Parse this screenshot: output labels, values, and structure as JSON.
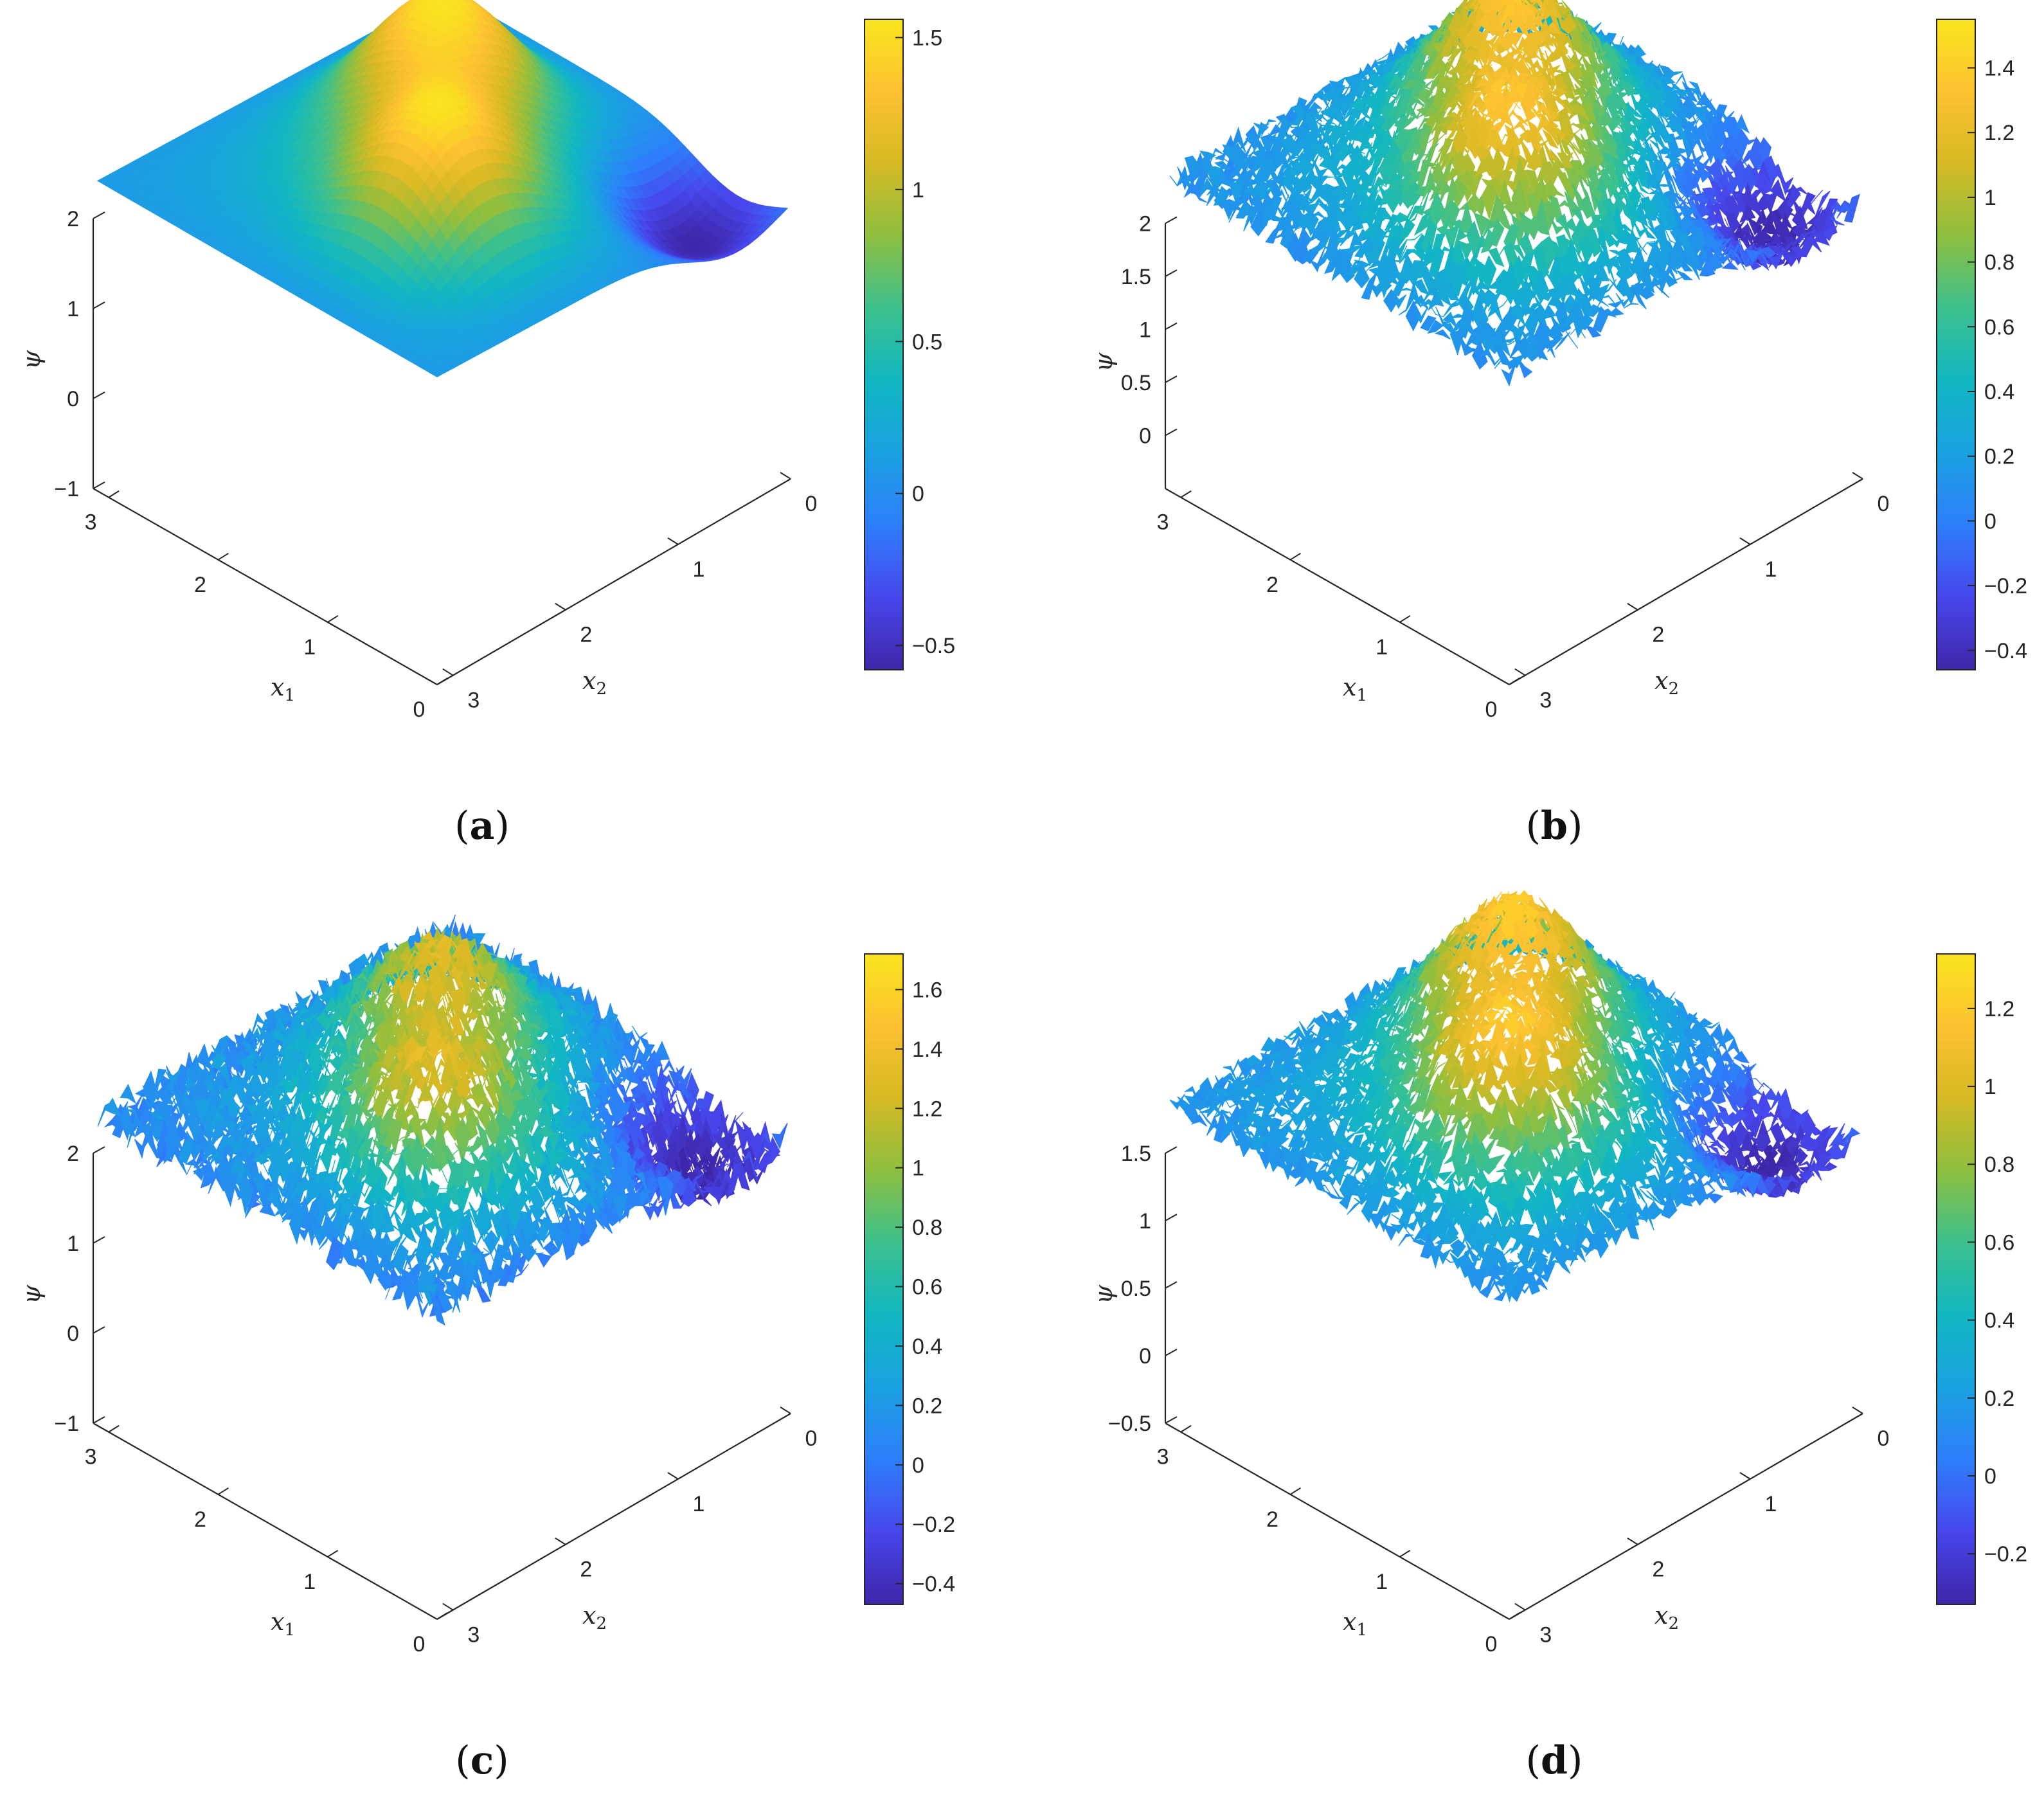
{
  "chart_data": [
    {
      "panel": "(a)",
      "letter": "a",
      "type": "surface",
      "xlabel": "x1",
      "ylabel": "x2",
      "zlabel": "ψ",
      "xlim": [
        0,
        3.14159
      ],
      "ylim": [
        0,
        3.14159
      ],
      "x_ticks": [
        "0",
        "1",
        "2",
        "3"
      ],
      "y_ticks": [
        "0",
        "1",
        "2",
        "3"
      ],
      "z_ticks": [
        "−1",
        "0",
        "1",
        "2"
      ],
      "z_tick_values": [
        -1,
        0,
        1,
        2
      ],
      "zlim": [
        -1,
        2
      ],
      "colorbar_ticks": [
        "−0.5",
        "0",
        "0.5",
        "1",
        "1.5"
      ],
      "colorbar_tick_values": [
        -0.5,
        0,
        0.5,
        1,
        1.5
      ],
      "colorbar_range": [
        -0.58,
        1.56
      ],
      "surface": {
        "peak_value": 1.56,
        "min_value": -0.58,
        "noise": 0.0
      }
    },
    {
      "panel": "(b)",
      "letter": "b",
      "type": "surface",
      "xlabel": "x1",
      "ylabel": "x2",
      "zlabel": "ψ",
      "xlim": [
        0,
        3.14159
      ],
      "ylim": [
        0,
        3.14159
      ],
      "x_ticks": [
        "0",
        "1",
        "2",
        "3"
      ],
      "y_ticks": [
        "0",
        "1",
        "2",
        "3"
      ],
      "z_ticks": [
        "0",
        "0.5",
        "1",
        "1.5",
        "2"
      ],
      "z_tick_values": [
        0,
        0.5,
        1,
        1.5,
        2
      ],
      "zlim": [
        -0.5,
        2
      ],
      "colorbar_ticks": [
        "−0.4",
        "−0.2",
        "0",
        "0.2",
        "0.4",
        "0.6",
        "0.8",
        "1",
        "1.2",
        "1.4"
      ],
      "colorbar_tick_values": [
        -0.4,
        -0.2,
        0,
        0.2,
        0.4,
        0.6,
        0.8,
        1,
        1.2,
        1.4
      ],
      "colorbar_range": [
        -0.46,
        1.55
      ],
      "surface": {
        "peak_value": 1.35,
        "min_value": -0.46,
        "noise": 0.12
      }
    },
    {
      "panel": "(c)",
      "letter": "c",
      "type": "surface",
      "xlabel": "x1",
      "ylabel": "x2",
      "zlabel": "ψ",
      "xlim": [
        0,
        3.14159
      ],
      "ylim": [
        0,
        3.14159
      ],
      "x_ticks": [
        "0",
        "1",
        "2",
        "3"
      ],
      "y_ticks": [
        "0",
        "1",
        "2",
        "3"
      ],
      "z_ticks": [
        "−1",
        "0",
        "1",
        "2"
      ],
      "z_tick_values": [
        -1,
        0,
        1,
        2
      ],
      "zlim": [
        -1,
        2
      ],
      "colorbar_ticks": [
        "−0.4",
        "−0.2",
        "0",
        "0.2",
        "0.4",
        "0.6",
        "0.8",
        "1",
        "1.2",
        "1.4",
        "1.6"
      ],
      "colorbar_tick_values": [
        -0.4,
        -0.2,
        0,
        0.2,
        0.4,
        0.6,
        0.8,
        1,
        1.2,
        1.4,
        1.6
      ],
      "colorbar_range": [
        -0.47,
        1.72
      ],
      "surface": {
        "peak_value": 1.3,
        "min_value": -0.47,
        "noise": 0.2
      }
    },
    {
      "panel": "(d)",
      "letter": "d",
      "type": "surface",
      "xlabel": "x1",
      "ylabel": "x2",
      "zlabel": "ψ",
      "xlim": [
        0,
        3.14159
      ],
      "ylim": [
        0,
        3.14159
      ],
      "x_ticks": [
        "0",
        "1",
        "2",
        "3"
      ],
      "y_ticks": [
        "0",
        "1",
        "2",
        "3"
      ],
      "z_ticks": [
        "−0.5",
        "0",
        "0.5",
        "1",
        "1.5"
      ],
      "z_tick_values": [
        -0.5,
        0,
        0.5,
        1,
        1.5
      ],
      "zlim": [
        -0.5,
        1.5
      ],
      "colorbar_ticks": [
        "−0.2",
        "0",
        "0.2",
        "0.4",
        "0.6",
        "0.8",
        "1",
        "1.2"
      ],
      "colorbar_tick_values": [
        -0.2,
        0,
        0.2,
        0.4,
        0.6,
        0.8,
        1,
        1.2
      ],
      "colorbar_range": [
        -0.33,
        1.34
      ],
      "surface": {
        "peak_value": 1.22,
        "min_value": -0.33,
        "noise": 0.09
      }
    }
  ],
  "colors": {
    "colormap": [
      "#3e26a8",
      "#4746ec",
      "#2e7efb",
      "#1aa1e1",
      "#11b7c2",
      "#3cc08d",
      "#8ebf3f",
      "#d6b924",
      "#fdc131",
      "#f9e51e"
    ],
    "axis": "#262626"
  }
}
